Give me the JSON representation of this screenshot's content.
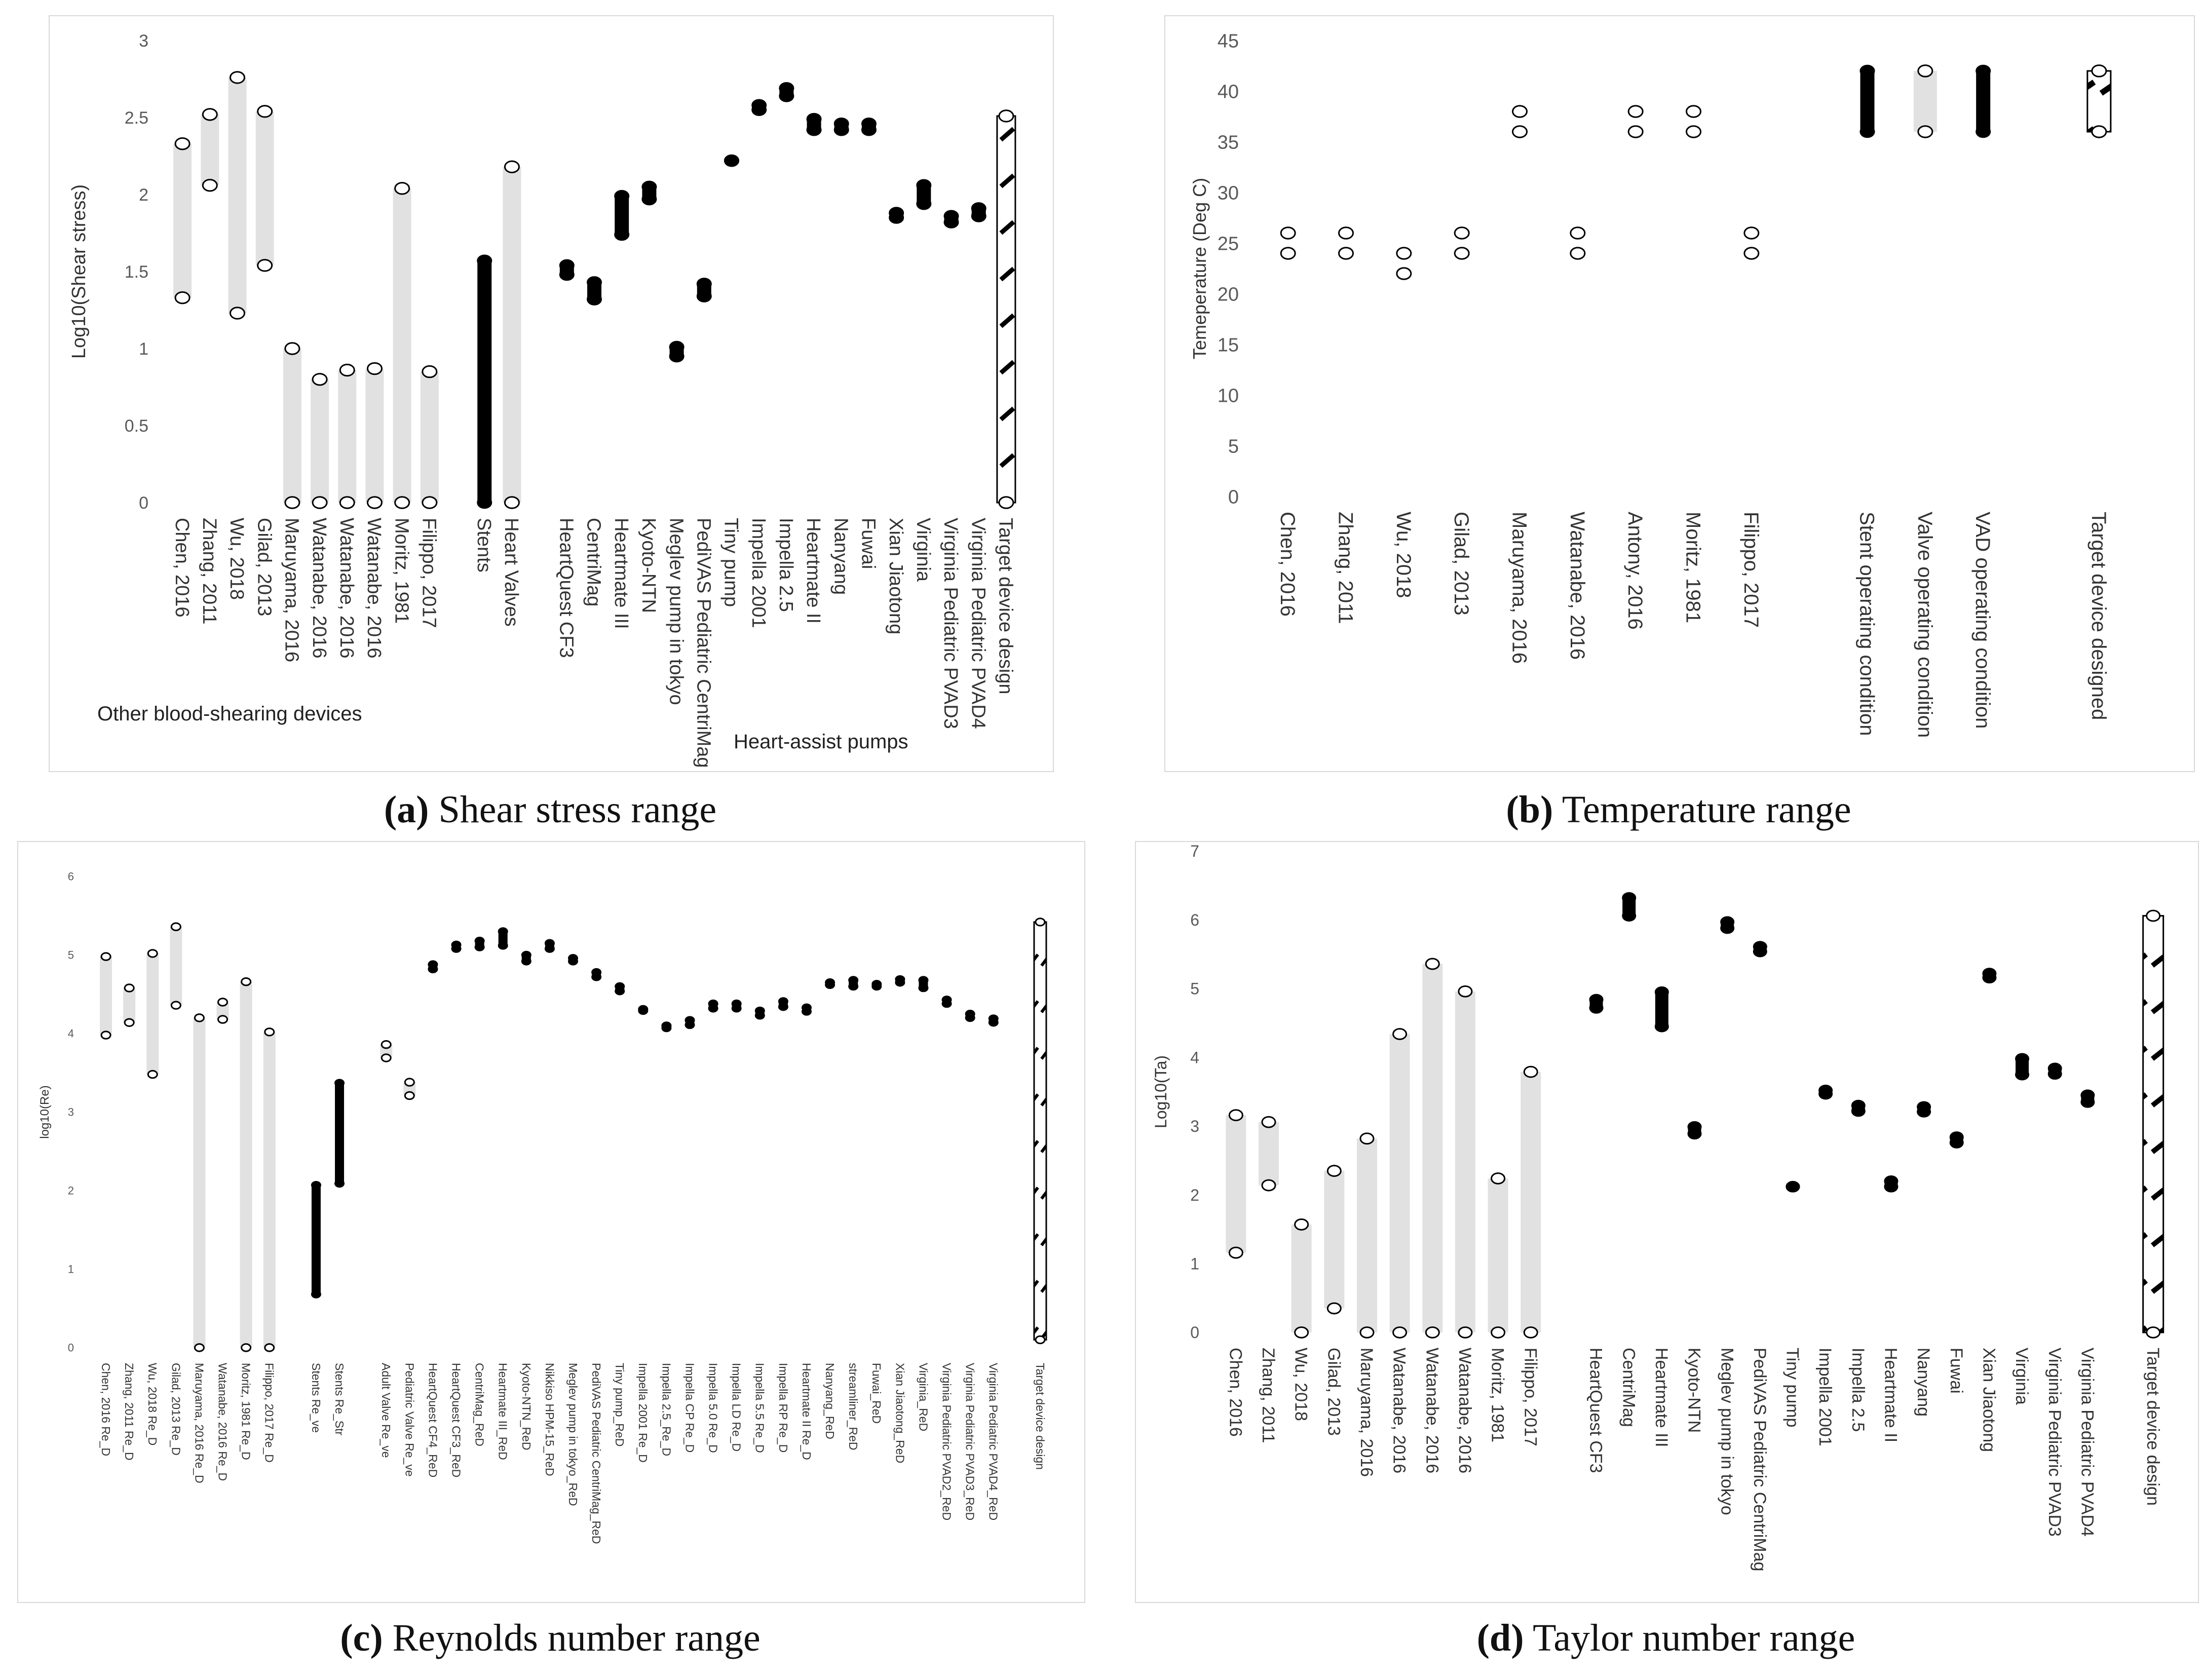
{
  "colors": {
    "range_gray": "#e1e1e1",
    "marker_black": "#000000",
    "axis_text": "#595959"
  },
  "chart_data": [
    {
      "type": "scatter",
      "chart_kind": "range-bar",
      "ylabel": "Log10(Shear stress)",
      "ylim": [
        0,
        3
      ],
      "yticks": [
        0,
        0.5,
        1,
        1.5,
        2,
        2.5,
        3
      ],
      "grid": false,
      "group_labels": [
        "Other blood-shearing devices",
        "Heart-assist pumps"
      ],
      "caption_letter": "(a)",
      "caption_text": " Shear stress range",
      "categories": [
        {
          "label": "Chen, 2016",
          "min": 1.33,
          "max": 2.33,
          "style": "open"
        },
        {
          "label": "Zhang, 2011",
          "min": 2.06,
          "max": 2.52,
          "style": "open"
        },
        {
          "label": "Wu, 2018",
          "min": 1.23,
          "max": 2.76,
          "style": "open"
        },
        {
          "label": "Gilad, 2013",
          "min": 1.54,
          "max": 2.54,
          "style": "open"
        },
        {
          "label": "Maruyama, 2016",
          "min": 0,
          "max": 1.0,
          "style": "open"
        },
        {
          "label": "Watanabe, 2016",
          "min": 0,
          "max": 0.8,
          "style": "open"
        },
        {
          "label": "Watanabe, 2016",
          "min": 0,
          "max": 0.86,
          "style": "open"
        },
        {
          "label": "Watanabe, 2016",
          "min": 0,
          "max": 0.87,
          "style": "open"
        },
        {
          "label": "Moritz, 1981",
          "min": 0,
          "max": 2.04,
          "style": "open"
        },
        {
          "label": "Filippo, 2017",
          "min": 0,
          "max": 0.85,
          "style": "open"
        },
        {
          "label": "",
          "gap": true
        },
        {
          "label": "Stents",
          "min": 0,
          "max": 1.57,
          "style": "solid"
        },
        {
          "label": "Heart Valves",
          "min": 0,
          "max": 2.18,
          "style": "open"
        },
        {
          "label": "",
          "gap": true
        },
        {
          "label": "HeartQuest CF3",
          "min": 1.48,
          "max": 1.54,
          "style": "solid"
        },
        {
          "label": "CentriMag",
          "min": 1.32,
          "max": 1.43,
          "style": "solid"
        },
        {
          "label": "Heartmate III",
          "min": 1.74,
          "max": 1.99,
          "style": "solid"
        },
        {
          "label": "Kyoto-NTN",
          "min": 1.97,
          "max": 2.05,
          "style": "solid"
        },
        {
          "label": "Meglev pump in tokyo",
          "min": 0.95,
          "max": 1.01,
          "style": "solid"
        },
        {
          "label": "PediVAS Pediatric CentriMag",
          "min": 1.34,
          "max": 1.42,
          "style": "solid"
        },
        {
          "label": "Tiny pump",
          "min": 2.22,
          "max": 2.22,
          "style": "solid"
        },
        {
          "label": "Impella 2001",
          "min": 2.55,
          "max": 2.58,
          "style": "solid"
        },
        {
          "label": "Impella 2.5",
          "min": 2.64,
          "max": 2.69,
          "style": "solid"
        },
        {
          "label": "Heartmate II",
          "min": 2.42,
          "max": 2.49,
          "style": "solid"
        },
        {
          "label": "Nanyang",
          "min": 2.42,
          "max": 2.46,
          "style": "solid"
        },
        {
          "label": "Fuwai",
          "min": 2.42,
          "max": 2.46,
          "style": "solid"
        },
        {
          "label": "Xian Jiaotong",
          "min": 1.85,
          "max": 1.88,
          "style": "solid"
        },
        {
          "label": "Virginia",
          "min": 1.94,
          "max": 2.06,
          "style": "solid"
        },
        {
          "label": "Virginia Pediatric PVAD3",
          "min": 1.82,
          "max": 1.86,
          "style": "solid"
        },
        {
          "label": "Virginia Pediatric PVAD4",
          "min": 1.86,
          "max": 1.91,
          "style": "solid"
        },
        {
          "label": "Target device design",
          "min": 0,
          "max": 2.51,
          "style": "target"
        }
      ]
    },
    {
      "type": "scatter",
      "chart_kind": "range-bar",
      "ylabel": "Temeperature (Deg C)",
      "ylim": [
        0,
        45
      ],
      "yticks": [
        0,
        5,
        10,
        15,
        20,
        25,
        30,
        35,
        40,
        45
      ],
      "grid": false,
      "caption_letter": "(b)",
      "caption_text": " Temperature range",
      "categories": [
        {
          "label": "Chen, 2016",
          "min": 24,
          "max": 26,
          "style": "open",
          "nobar": true
        },
        {
          "label": "Zhang, 2011",
          "min": 24,
          "max": 26,
          "style": "open",
          "nobar": true
        },
        {
          "label": "Wu, 2018",
          "min": 22,
          "max": 24,
          "style": "open",
          "nobar": true
        },
        {
          "label": "Gilad, 2013",
          "min": 24,
          "max": 26,
          "style": "open",
          "nobar": true
        },
        {
          "label": "Maruyama, 2016",
          "min": 36,
          "max": 38,
          "style": "open",
          "nobar": true
        },
        {
          "label": "Watanabe, 2016",
          "min": 24,
          "max": 26,
          "style": "open",
          "nobar": true
        },
        {
          "label": "Antony, 2016",
          "min": 36,
          "max": 38,
          "style": "open",
          "nobar": true
        },
        {
          "label": "Moritz, 1981",
          "min": 36,
          "max": 38,
          "style": "open",
          "nobar": true
        },
        {
          "label": "Filippo, 2017",
          "min": 24,
          "max": 26,
          "style": "open",
          "nobar": true
        },
        {
          "label": "",
          "gap": true
        },
        {
          "label": "Stent operating condition",
          "min": 36,
          "max": 42,
          "style": "solid"
        },
        {
          "label": "Valve operating condition",
          "min": 36,
          "max": 42,
          "style": "open"
        },
        {
          "label": "VAD operating condition",
          "min": 36,
          "max": 42,
          "style": "solid"
        },
        {
          "label": "",
          "gap": true
        },
        {
          "label": "Target device designed",
          "min": 36,
          "max": 42,
          "style": "target"
        }
      ]
    },
    {
      "type": "scatter",
      "chart_kind": "range-bar",
      "ylabel": "log10(Re)",
      "ylim": [
        0,
        6
      ],
      "yticks": [
        0,
        1,
        2,
        3,
        4,
        5,
        6
      ],
      "grid": false,
      "caption_letter": "(c)",
      "caption_text": " Reynolds number range",
      "categories": [
        {
          "label": "Chen, 2016 Re_D",
          "min": 3.98,
          "max": 4.98,
          "style": "open"
        },
        {
          "label": "Zhang, 2011 Re_D",
          "min": 4.14,
          "max": 4.58,
          "style": "open"
        },
        {
          "label": "Wu, 2018 Re_D",
          "min": 3.48,
          "max": 5.02,
          "style": "open"
        },
        {
          "label": "Gilad, 2013 Re_D",
          "min": 4.36,
          "max": 5.36,
          "style": "open"
        },
        {
          "label": "Maruyama, 2016 Re_D",
          "min": 0,
          "max": 4.2,
          "style": "open"
        },
        {
          "label": "Watanabe, 2016 Re_D",
          "min": 4.18,
          "max": 4.4,
          "style": "open"
        },
        {
          "label": "Moritz, 1981 Re_D",
          "min": 0,
          "max": 4.66,
          "style": "open"
        },
        {
          "label": "Filippo, 2017 Re_D",
          "min": 0,
          "max": 4.02,
          "style": "open"
        },
        {
          "label": "",
          "gap": true
        },
        {
          "label": "Stents Re_ve",
          "min": 0.68,
          "max": 2.07,
          "style": "solid"
        },
        {
          "label": "Stents Re_Str",
          "min": 2.09,
          "max": 3.37,
          "style": "solid"
        },
        {
          "label": "",
          "gap": true
        },
        {
          "label": "Adult Valve Re_ve",
          "min": 3.69,
          "max": 3.86,
          "style": "open"
        },
        {
          "label": "Pediatric Valve Re_ve",
          "min": 3.21,
          "max": 3.38,
          "style": "open"
        },
        {
          "label": "HeartQuest CF4_ReD",
          "min": 4.82,
          "max": 4.88,
          "style": "solid"
        },
        {
          "label": "HeartQuest CF3_ReD",
          "min": 5.08,
          "max": 5.13,
          "style": "solid"
        },
        {
          "label": "CentriMag_ReD",
          "min": 5.1,
          "max": 5.18,
          "style": "solid"
        },
        {
          "label": "Heartmate III_ReD",
          "min": 5.12,
          "max": 5.3,
          "style": "solid"
        },
        {
          "label": "Kyoto-NTN_ReD",
          "min": 4.92,
          "max": 5.0,
          "style": "solid"
        },
        {
          "label": "Nikkiso HPM-15_ReD",
          "min": 5.08,
          "max": 5.15,
          "style": "solid"
        },
        {
          "label": "Meglev pump in tokyo_ReD",
          "min": 4.92,
          "max": 4.96,
          "style": "solid"
        },
        {
          "label": "PediVAS Pediatric CentriMag_ReD",
          "min": 4.72,
          "max": 4.78,
          "style": "solid"
        },
        {
          "label": "Tiny pump_ReD",
          "min": 4.54,
          "max": 4.6,
          "style": "solid"
        },
        {
          "label": "Impella 2001 Re_D",
          "min": 4.29,
          "max": 4.31,
          "style": "solid"
        },
        {
          "label": "Impella 2.5_Re_D",
          "min": 4.07,
          "max": 4.1,
          "style": "solid"
        },
        {
          "label": "Impella CP Re_D",
          "min": 4.11,
          "max": 4.17,
          "style": "solid"
        },
        {
          "label": "Impella 5.0 Re_D",
          "min": 4.32,
          "max": 4.38,
          "style": "solid"
        },
        {
          "label": "Impella LD Re_D",
          "min": 4.32,
          "max": 4.38,
          "style": "solid"
        },
        {
          "label": "Impella 5.5 Re_D",
          "min": 4.23,
          "max": 4.29,
          "style": "solid"
        },
        {
          "label": "Impella RP Re_D",
          "min": 4.34,
          "max": 4.41,
          "style": "solid"
        },
        {
          "label": "Heartmate II Re_D",
          "min": 4.28,
          "max": 4.33,
          "style": "solid"
        },
        {
          "label": "Nanyang_ReD",
          "min": 4.62,
          "max": 4.65,
          "style": "solid"
        },
        {
          "label": "streamliner_ReD",
          "min": 4.6,
          "max": 4.68,
          "style": "solid"
        },
        {
          "label": "Fuwai_ReD",
          "min": 4.6,
          "max": 4.63,
          "style": "solid"
        },
        {
          "label": "Xian Jiaotong_ReD",
          "min": 4.65,
          "max": 4.69,
          "style": "solid"
        },
        {
          "label": "Virginia_ReD",
          "min": 4.58,
          "max": 4.68,
          "style": "solid"
        },
        {
          "label": "Virginia Pediatric PVAD2_ReD",
          "min": 4.38,
          "max": 4.43,
          "style": "solid"
        },
        {
          "label": "Virginia Pediatric PVAD3_ReD",
          "min": 4.2,
          "max": 4.25,
          "style": "solid"
        },
        {
          "label": "Virginia Pediatric PVAD4_ReD",
          "min": 4.14,
          "max": 4.19,
          "style": "solid"
        },
        {
          "label": "",
          "gap": true
        },
        {
          "label": "Target device design",
          "min": 0.1,
          "max": 5.42,
          "style": "target"
        }
      ]
    },
    {
      "type": "scatter",
      "chart_kind": "range-bar",
      "ylabel": "Log10(Ta)",
      "ylim": [
        0,
        7
      ],
      "yticks": [
        0,
        1,
        2,
        3,
        4,
        5,
        6,
        7
      ],
      "grid": false,
      "caption_letter": "(d)",
      "caption_text": " Taylor number range",
      "categories": [
        {
          "label": "Chen, 2016",
          "min": 1.16,
          "max": 3.16,
          "style": "open"
        },
        {
          "label": "Zhang, 2011",
          "min": 2.14,
          "max": 3.06,
          "style": "open"
        },
        {
          "label": "Wu, 2018",
          "min": 0,
          "max": 1.57,
          "style": "open"
        },
        {
          "label": "Gilad, 2013",
          "min": 0.35,
          "max": 2.35,
          "style": "open"
        },
        {
          "label": "Maruyama, 2016",
          "min": 0,
          "max": 2.82,
          "style": "open"
        },
        {
          "label": "Watanabe, 2016",
          "min": 0,
          "max": 4.34,
          "style": "open"
        },
        {
          "label": "Watanabe, 2016",
          "min": 0,
          "max": 5.36,
          "style": "open"
        },
        {
          "label": "Watanabe, 2016",
          "min": 0,
          "max": 4.96,
          "style": "open"
        },
        {
          "label": "Moritz, 1981",
          "min": 0,
          "max": 2.24,
          "style": "open"
        },
        {
          "label": "Filippo, 2017",
          "min": 0,
          "max": 3.79,
          "style": "open"
        },
        {
          "label": "",
          "gap": true
        },
        {
          "label": "HeartQuest CF3",
          "min": 4.72,
          "max": 4.84,
          "style": "solid"
        },
        {
          "label": "CentriMag",
          "min": 6.06,
          "max": 6.32,
          "style": "solid"
        },
        {
          "label": "Heartmate III",
          "min": 4.45,
          "max": 4.95,
          "style": "solid"
        },
        {
          "label": "Kyoto-NTN",
          "min": 2.89,
          "max": 2.99,
          "style": "solid"
        },
        {
          "label": "Meglev pump in tokyo",
          "min": 5.88,
          "max": 5.97,
          "style": "solid"
        },
        {
          "label": "PediVAS Pediatric CentriMag",
          "min": 5.54,
          "max": 5.61,
          "style": "solid"
        },
        {
          "label": "Tiny pump",
          "min": 2.12,
          "max": 2.12,
          "style": "solid"
        },
        {
          "label": "Impella 2001",
          "min": 3.47,
          "max": 3.52,
          "style": "solid"
        },
        {
          "label": "Impella 2.5",
          "min": 3.22,
          "max": 3.3,
          "style": "solid"
        },
        {
          "label": "Heartmate II",
          "min": 2.12,
          "max": 2.2,
          "style": "solid"
        },
        {
          "label": "Nanyang",
          "min": 3.21,
          "max": 3.28,
          "style": "solid"
        },
        {
          "label": "Fuwai",
          "min": 2.76,
          "max": 2.84,
          "style": "solid"
        },
        {
          "label": "Xian Jiaotong",
          "min": 5.16,
          "max": 5.22,
          "style": "solid"
        },
        {
          "label": "Virginia",
          "min": 3.75,
          "max": 3.98,
          "style": "solid"
        },
        {
          "label": "Virginia Pediatric PVAD3",
          "min": 3.76,
          "max": 3.84,
          "style": "solid"
        },
        {
          "label": "Virginia Pediatric PVAD4",
          "min": 3.35,
          "max": 3.45,
          "style": "solid"
        },
        {
          "label": "",
          "gap": true
        },
        {
          "label": "Target device design",
          "min": 0,
          "max": 6.06,
          "style": "target"
        }
      ]
    }
  ]
}
